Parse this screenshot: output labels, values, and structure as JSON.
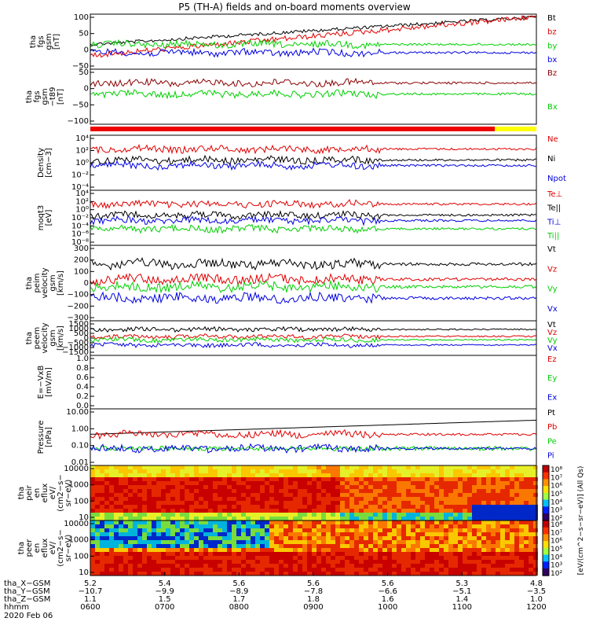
{
  "title": "P5 (TH-A) fields and on-board moments overview",
  "chart_data": [
    {
      "type": "line",
      "ylabel": [
        "tha",
        "fgs",
        "gsm",
        "[nT]"
      ],
      "ylim": [
        -50,
        100
      ],
      "log": false,
      "ticks": [
        "100",
        "50",
        "0",
        "−50"
      ],
      "series": [
        {
          "name": "Bt",
          "color": "#000000"
        },
        {
          "name": "bz",
          "color": "#e00000"
        },
        {
          "name": "by",
          "color": "#00d000"
        },
        {
          "name": "bx",
          "color": "#0000e0"
        }
      ]
    },
    {
      "type": "line",
      "ylabel": [
        "tha",
        "fgs",
        "gsm",
        "−t89",
        "[nT]"
      ],
      "ylim": [
        -110,
        60
      ],
      "log": false,
      "ticks": [
        "50",
        "0",
        "−50",
        "−100"
      ],
      "series": [
        {
          "name": "Bz",
          "color": "#8b0000"
        },
        {
          "name": "Bx",
          "color": "#00d000"
        }
      ]
    },
    {
      "type": "line",
      "ylabel": [
        "Density",
        "[cm−3]"
      ],
      "log": true,
      "ticks": [
        "10⁴",
        "10²",
        "10⁰",
        "10⁻²",
        "10⁻⁴"
      ],
      "series": [
        {
          "name": "Ne",
          "color": "#e00000"
        },
        {
          "name": "Ni",
          "color": "#000000"
        },
        {
          "name": "Npot",
          "color": "#0000e0"
        }
      ]
    },
    {
      "type": "line",
      "ylabel": [
        "moqt3",
        "[eV]"
      ],
      "log": true,
      "ticks": [
        "10⁴",
        "10²",
        "10⁰",
        "10⁻²",
        "10⁻⁴",
        "10⁻⁶",
        "10⁻⁸"
      ],
      "series": [
        {
          "name": "Te⊥",
          "color": "#e00000"
        },
        {
          "name": "Te||",
          "color": "#000000"
        },
        {
          "name": "Ti⊥",
          "color": "#0000e0"
        },
        {
          "name": "Ti||",
          "color": "#00d000"
        }
      ]
    },
    {
      "type": "line",
      "ylabel": [
        "tha",
        "peim",
        "velocity",
        "gsm",
        "[km/s]"
      ],
      "ylim": [
        -300,
        300
      ],
      "log": false,
      "ticks": [
        "300",
        "200",
        "100",
        "0",
        "−100",
        "−200",
        "−300"
      ],
      "series": [
        {
          "name": "Vt",
          "color": "#000000"
        },
        {
          "name": "Vz",
          "color": "#e00000"
        },
        {
          "name": "Vy",
          "color": "#00d000"
        },
        {
          "name": "Vx",
          "color": "#0000e0"
        }
      ]
    },
    {
      "type": "line",
      "ylabel": [
        "tha",
        "peem",
        "velocity",
        "gsm",
        "[km/s]"
      ],
      "ylim": [
        -1500,
        1500
      ],
      "log": false,
      "ticks": [
        "1500",
        "1000",
        "500",
        "0",
        "−500",
        "−1000",
        "−1500"
      ],
      "series": [
        {
          "name": "Vt",
          "color": "#000000"
        },
        {
          "name": "Vz",
          "color": "#e00000"
        },
        {
          "name": "Vy",
          "color": "#00d000"
        },
        {
          "name": "Vx",
          "color": "#0000e0"
        }
      ]
    },
    {
      "type": "line",
      "ylabel": [
        "E=−VxB",
        "[mV/m]"
      ],
      "ylim": [
        0,
        1
      ],
      "log": false,
      "ticks": [
        "1.0",
        "0.8",
        "0.6",
        "0.4",
        "0.2",
        "0.0"
      ],
      "series": [
        {
          "name": "Ez",
          "color": "#e00000"
        },
        {
          "name": "Ey",
          "color": "#00d000"
        },
        {
          "name": "Ex",
          "color": "#0000e0"
        }
      ]
    },
    {
      "type": "line",
      "ylabel": [
        "Pressure",
        "[nPa]"
      ],
      "log": true,
      "ticks": [
        "10.00",
        "1.00",
        "0.10",
        "0.01"
      ],
      "series": [
        {
          "name": "Pt",
          "color": "#000000"
        },
        {
          "name": "Pb",
          "color": "#e00000"
        },
        {
          "name": "Pe",
          "color": "#00d000"
        },
        {
          "name": "Pi",
          "color": "#0000e0"
        }
      ]
    },
    {
      "type": "heatmap",
      "ylabel": [
        "tha",
        "peir",
        "en",
        "eflux",
        "eV/",
        "(cm2−s−",
        "sr−eV)"
      ],
      "log": true,
      "ticks": [
        "10000",
        "1000",
        "100",
        "10"
      ]
    },
    {
      "type": "heatmap",
      "ylabel": [
        "tha",
        "peer",
        "en",
        "eflux",
        "eV/",
        "(cm2−s−",
        "sr−eV)"
      ],
      "log": true,
      "ticks": [
        "10000",
        "1000",
        "100",
        "10"
      ]
    }
  ],
  "colorbar": {
    "ticks": [
      "10⁸",
      "10⁷",
      "10⁶",
      "10⁵",
      "10⁴",
      "10³",
      "10²"
    ],
    "label": "[eV/(cm^2−s−sr−eV)] (All Qs)"
  },
  "colorbar2": {
    "ticks": [
      "10⁸",
      "10⁷",
      "10⁶",
      "10⁵",
      "10⁴",
      "10³",
      "10²"
    ]
  },
  "xaxis": {
    "rows": [
      {
        "label": "tha_X−GSM",
        "values": [
          "5.2",
          "5.4",
          "5.6",
          "5.6",
          "5.6",
          "5.3",
          "4.8"
        ]
      },
      {
        "label": "tha_Y−GSM",
        "values": [
          "−10.7",
          "−9.9",
          "−8.9",
          "−7.8",
          "−6.6",
          "−5.1",
          "−3.5"
        ]
      },
      {
        "label": "tha_Z−GSM",
        "values": [
          "1.1",
          "1.5",
          "1.7",
          "1.8",
          "1.6",
          "1.4",
          "1.0"
        ]
      },
      {
        "label": "hhmm",
        "values": [
          "0600",
          "0700",
          "0800",
          "0900",
          "1000",
          "1100",
          "1200"
        ]
      }
    ],
    "date": "2020 Feb 06"
  }
}
